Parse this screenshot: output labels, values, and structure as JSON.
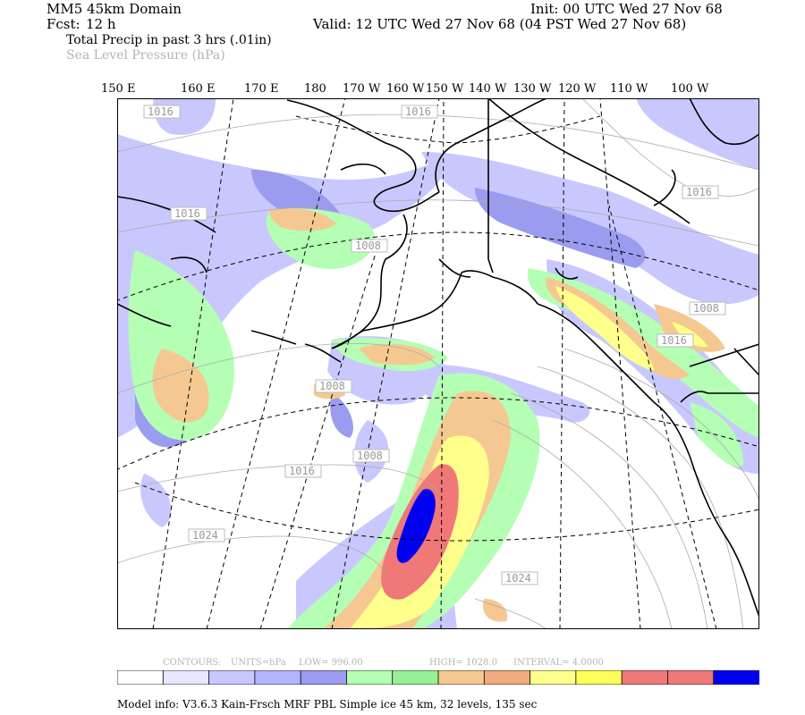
{
  "header": {
    "domain": "MM5 45km Domain",
    "fcst_label": "Fcst:",
    "fcst_value": "12 h",
    "init": "Init: 00 UTC Wed 27 Nov 68",
    "valid": "Valid: 12 UTC Wed 27 Nov 68 (04 PST Wed 27 Nov 68)",
    "field1": "Total Precip in past 3 hrs (.01in)",
    "field2": "Sea Level Pressure (hPa)"
  },
  "longitude_labels": [
    "150 E",
    "160 E",
    "170 E",
    "180",
    "170 W",
    "160 W",
    "150 W",
    "140 W",
    "130 W",
    "120 W",
    "110 W",
    "100 W"
  ],
  "pressure_labels": [
    "1016",
    "1016",
    "1016",
    "1016",
    "1008",
    "1008",
    "1016",
    "1008",
    "1008",
    "1016",
    "1024",
    "1024"
  ],
  "contour_info": {
    "contours": "CONTOURS:",
    "units": "UNITS=hPa",
    "low": "LOW=   996.00",
    "high": "HIGH=   1028.0",
    "interval": "INTERVAL=    4.0000"
  },
  "colorbar": {
    "colors": [
      "#ffffff",
      "#e6e6ff",
      "#c8c8ff",
      "#b4b4ff",
      "#9b9bf0",
      "#b4ffb4",
      "#96f096",
      "#f5c891",
      "#f0aa7d",
      "#ffff8c",
      "#ffff5a",
      "#f07878",
      "#f07878",
      "#0000f0"
    ]
  },
  "model_info": "Model info: V3.6.3 Kain-Frsch MRF PBL     Simple ice     45 km,  32 levels,  135 sec",
  "chart_data": {
    "type": "heatmap",
    "title": "Total Precip in past 3 hrs (.01in)",
    "overlay": "Sea Level Pressure (hPa)",
    "contour_units": "hPa",
    "contour_low": 996.0,
    "contour_high": 1028.0,
    "contour_interval": 4.0,
    "isobar_labels": [
      1016,
      1016,
      1016,
      1016,
      1008,
      1008,
      1016,
      1008,
      1008,
      1016,
      1024,
      1024
    ],
    "precip_bins": 14,
    "x_tick_labels": [
      "150 E",
      "160 E",
      "170 E",
      "180",
      "170 W",
      "160 W",
      "150 W",
      "140 W",
      "130 W",
      "120 W",
      "110 W",
      "100 W"
    ]
  }
}
